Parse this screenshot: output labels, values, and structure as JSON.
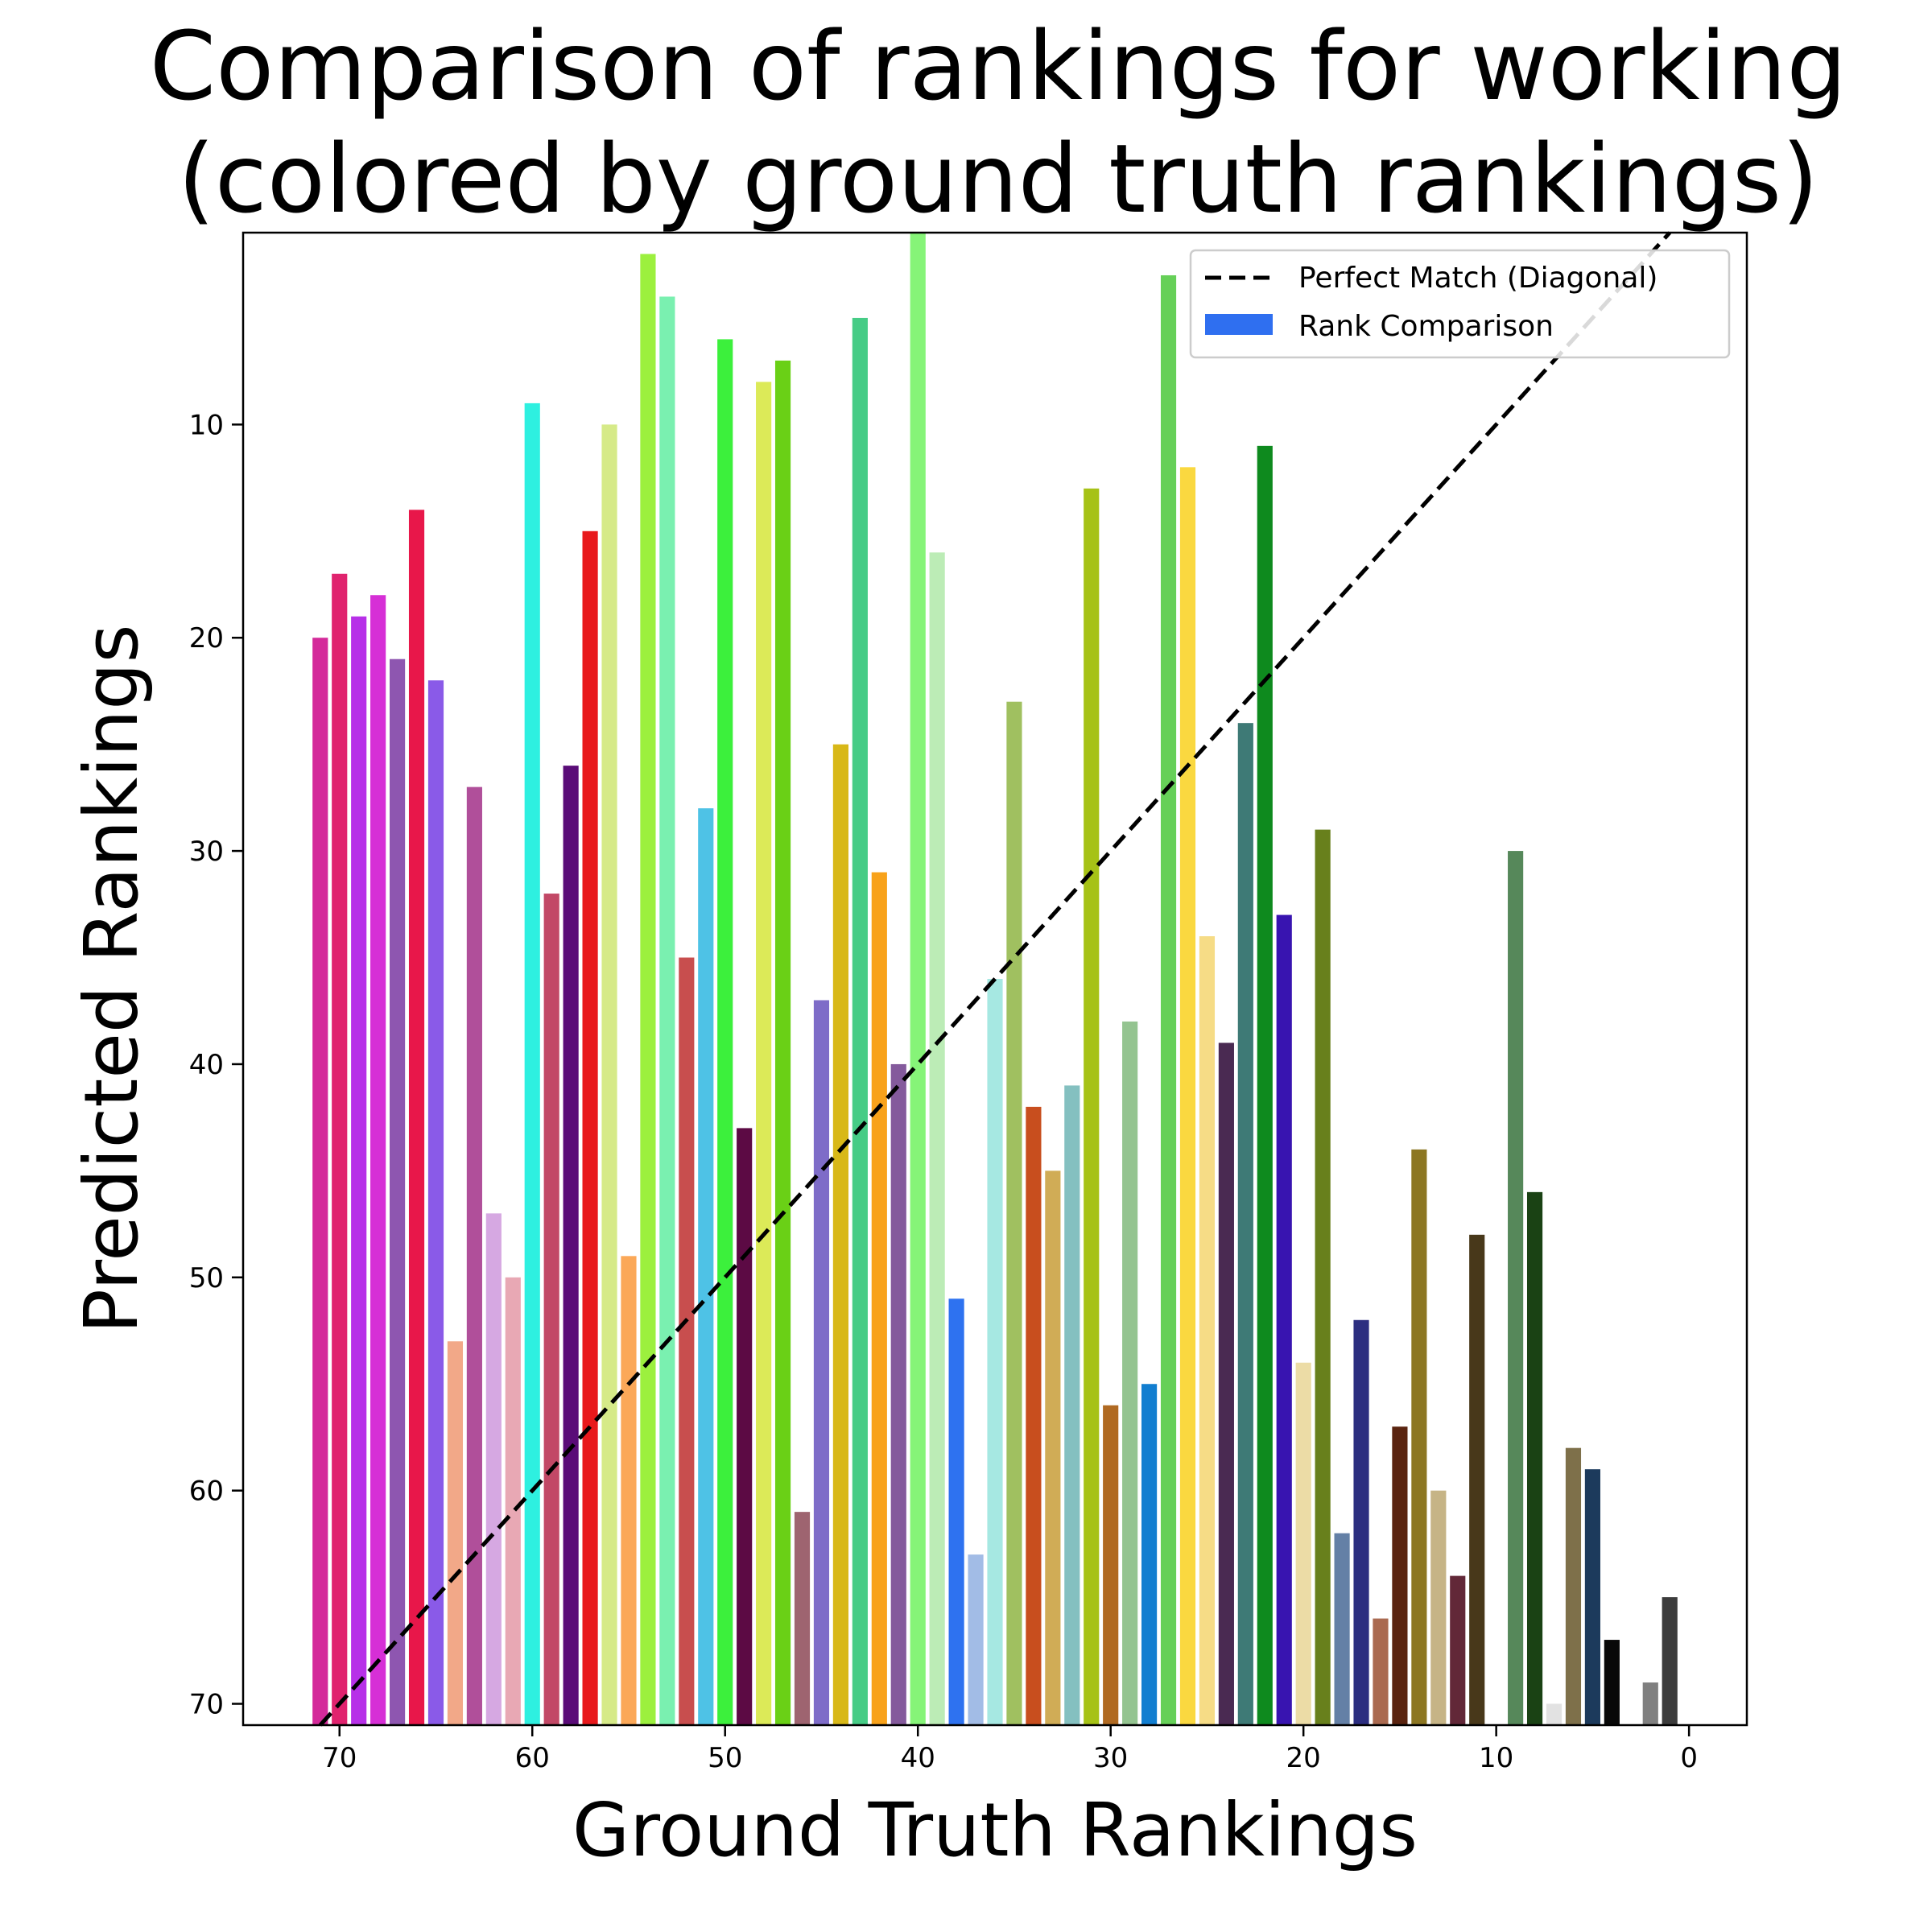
{
  "chart_data": {
    "type": "bar",
    "title": "Comparison of rankings for working (colored by ground truth rankings)",
    "title_lines": [
      "Comparison of rankings for working",
      "(colored by ground truth rankings)"
    ],
    "xlabel": "Ground Truth Rankings",
    "ylabel": "Predicted Rankings",
    "xlim": [
      75,
      -3
    ],
    "ylim": [
      71,
      1
    ],
    "x_inverted": true,
    "y_inverted": true,
    "grid": false,
    "legend_position": "top-right",
    "x_ticks": [
      70,
      60,
      50,
      40,
      30,
      20,
      10,
      0
    ],
    "y_ticks": [
      10,
      20,
      30,
      40,
      50,
      60,
      70
    ],
    "legend": [
      {
        "label": "Perfect Match (Diagonal)",
        "style": "dashed-line",
        "color": "#000000"
      },
      {
        "label": "Rank Comparison",
        "style": "bar",
        "color": "#2f6ff0"
      }
    ],
    "diagonal": {
      "from": [
        71,
        71
      ],
      "to": [
        0,
        0
      ],
      "color": "#000000"
    },
    "bars": [
      {
        "x": 71,
        "y": 20,
        "color": "#d42a9a"
      },
      {
        "x": 70,
        "y": 17,
        "color": "#e0236e"
      },
      {
        "x": 69,
        "y": 19,
        "color": "#b730e8"
      },
      {
        "x": 68,
        "y": 18,
        "color": "#d62fd6"
      },
      {
        "x": 67,
        "y": 21,
        "color": "#8e56b0"
      },
      {
        "x": 66,
        "y": 14,
        "color": "#e8174a"
      },
      {
        "x": 65,
        "y": 22,
        "color": "#8a5ae8"
      },
      {
        "x": 64,
        "y": 53,
        "color": "#f2a888"
      },
      {
        "x": 63,
        "y": 27,
        "color": "#b04f9a"
      },
      {
        "x": 62,
        "y": 47,
        "color": "#d6a8e2"
      },
      {
        "x": 61,
        "y": 50,
        "color": "#e8a8b4"
      },
      {
        "x": 60,
        "y": 9,
        "color": "#2ef0e0"
      },
      {
        "x": 59,
        "y": 32,
        "color": "#c24866"
      },
      {
        "x": 58,
        "y": 26,
        "color": "#5a0c78"
      },
      {
        "x": 57,
        "y": 15,
        "color": "#e8191c"
      },
      {
        "x": 56,
        "y": 10,
        "color": "#d6ea88"
      },
      {
        "x": 55,
        "y": 49,
        "color": "#fba858"
      },
      {
        "x": 54,
        "y": 2,
        "color": "#9cf03e"
      },
      {
        "x": 53,
        "y": 4,
        "color": "#7af0b0"
      },
      {
        "x": 52,
        "y": 35,
        "color": "#c84e4e"
      },
      {
        "x": 51,
        "y": 28,
        "color": "#4ec2e6"
      },
      {
        "x": 50,
        "y": 6,
        "color": "#3cf03c"
      },
      {
        "x": 49,
        "y": 43,
        "color": "#5c0a44"
      },
      {
        "x": 48,
        "y": 8,
        "color": "#dcea58"
      },
      {
        "x": 47,
        "y": 7,
        "color": "#6ad016"
      },
      {
        "x": 46,
        "y": 61,
        "color": "#9e6470"
      },
      {
        "x": 45,
        "y": 37,
        "color": "#7e6cc8"
      },
      {
        "x": 44,
        "y": 25,
        "color": "#d8b818"
      },
      {
        "x": 43,
        "y": 5,
        "color": "#46cc86"
      },
      {
        "x": 42,
        "y": 31,
        "color": "#f8a21a"
      },
      {
        "x": 41,
        "y": 40,
        "color": "#845a9c"
      },
      {
        "x": 40,
        "y": 1,
        "color": "#86f478"
      },
      {
        "x": 39,
        "y": 16,
        "color": "#bcecb6"
      },
      {
        "x": 38,
        "y": 51,
        "color": "#2e72f0"
      },
      {
        "x": 37,
        "y": 63,
        "color": "#a2bce6"
      },
      {
        "x": 36,
        "y": 36,
        "color": "#a6e8e2"
      },
      {
        "x": 35,
        "y": 23,
        "color": "#a0c060"
      },
      {
        "x": 34,
        "y": 42,
        "color": "#c84e1e"
      },
      {
        "x": 33,
        "y": 45,
        "color": "#d0ac56"
      },
      {
        "x": 32,
        "y": 41,
        "color": "#84c0c0"
      },
      {
        "x": 31,
        "y": 13,
        "color": "#a6c216"
      },
      {
        "x": 30,
        "y": 56,
        "color": "#b06a22"
      },
      {
        "x": 29,
        "y": 38,
        "color": "#94c490"
      },
      {
        "x": 28,
        "y": 55,
        "color": "#127ed0"
      },
      {
        "x": 27,
        "y": 3,
        "color": "#66d058"
      },
      {
        "x": 26,
        "y": 12,
        "color": "#fad840"
      },
      {
        "x": 25,
        "y": 34,
        "color": "#f6dc86"
      },
      {
        "x": 24,
        "y": 39,
        "color": "#4a2a52"
      },
      {
        "x": 23,
        "y": 24,
        "color": "#3e7a76"
      },
      {
        "x": 22,
        "y": 11,
        "color": "#0e8a1e"
      },
      {
        "x": 21,
        "y": 33,
        "color": "#3814b0"
      },
      {
        "x": 20,
        "y": 54,
        "color": "#ecdca6"
      },
      {
        "x": 19,
        "y": 29,
        "color": "#68801c"
      },
      {
        "x": 18,
        "y": 62,
        "color": "#6480a6"
      },
      {
        "x": 17,
        "y": 52,
        "color": "#2c2e80"
      },
      {
        "x": 16,
        "y": 66,
        "color": "#aa6a50"
      },
      {
        "x": 15,
        "y": 57,
        "color": "#5a2410"
      },
      {
        "x": 14,
        "y": 44,
        "color": "#8c7622"
      },
      {
        "x": 13,
        "y": 60,
        "color": "#c6b486"
      },
      {
        "x": 12,
        "y": 64,
        "color": "#622838"
      },
      {
        "x": 11,
        "y": 48,
        "color": "#48381a"
      },
      {
        "x": 9,
        "y": 30,
        "color": "#56885a"
      },
      {
        "x": 8,
        "y": 46,
        "color": "#1a4214"
      },
      {
        "x": 7,
        "y": 70,
        "color": "#e2e2e2"
      },
      {
        "x": 6,
        "y": 58,
        "color": "#7e704a"
      },
      {
        "x": 5,
        "y": 59,
        "color": "#1c3a5c"
      },
      {
        "x": 4,
        "y": 67,
        "color": "#080808"
      },
      {
        "x": 2,
        "y": 69,
        "color": "#808080"
      },
      {
        "x": 1,
        "y": 65,
        "color": "#3c3c3c"
      }
    ]
  }
}
